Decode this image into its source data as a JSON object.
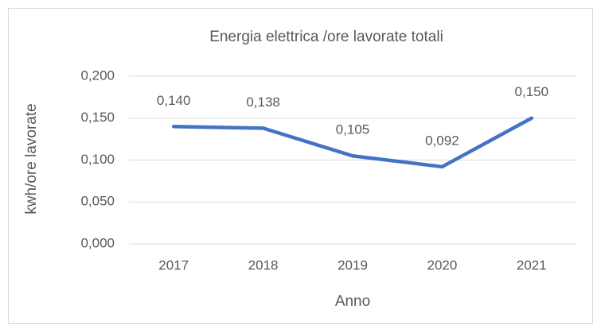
{
  "chart_data": {
    "type": "line",
    "title": "Energia elettrica /ore lavorate totali",
    "x_label": "Anno",
    "y_label": "kwh/ore lavorate",
    "categories": [
      "2017",
      "2018",
      "2019",
      "2020",
      "2021"
    ],
    "series": [
      {
        "name": "Energia elettrica /ore lavorate totali",
        "color": "#4472c4",
        "values": [
          0.14,
          0.138,
          0.105,
          0.092,
          0.15
        ],
        "value_labels": [
          "0,140",
          "0,138",
          "0,105",
          "0,092",
          "0,150"
        ]
      }
    ],
    "ylim": [
      0,
      0.2
    ],
    "yticks": [
      {
        "value": 0,
        "label": "0,000"
      },
      {
        "value": 0.05,
        "label": "0,050"
      },
      {
        "value": 0.1,
        "label": "0,100"
      },
      {
        "value": 0.15,
        "label": "0,150"
      },
      {
        "value": 0.2,
        "label": "0,200"
      }
    ],
    "grid": true
  }
}
